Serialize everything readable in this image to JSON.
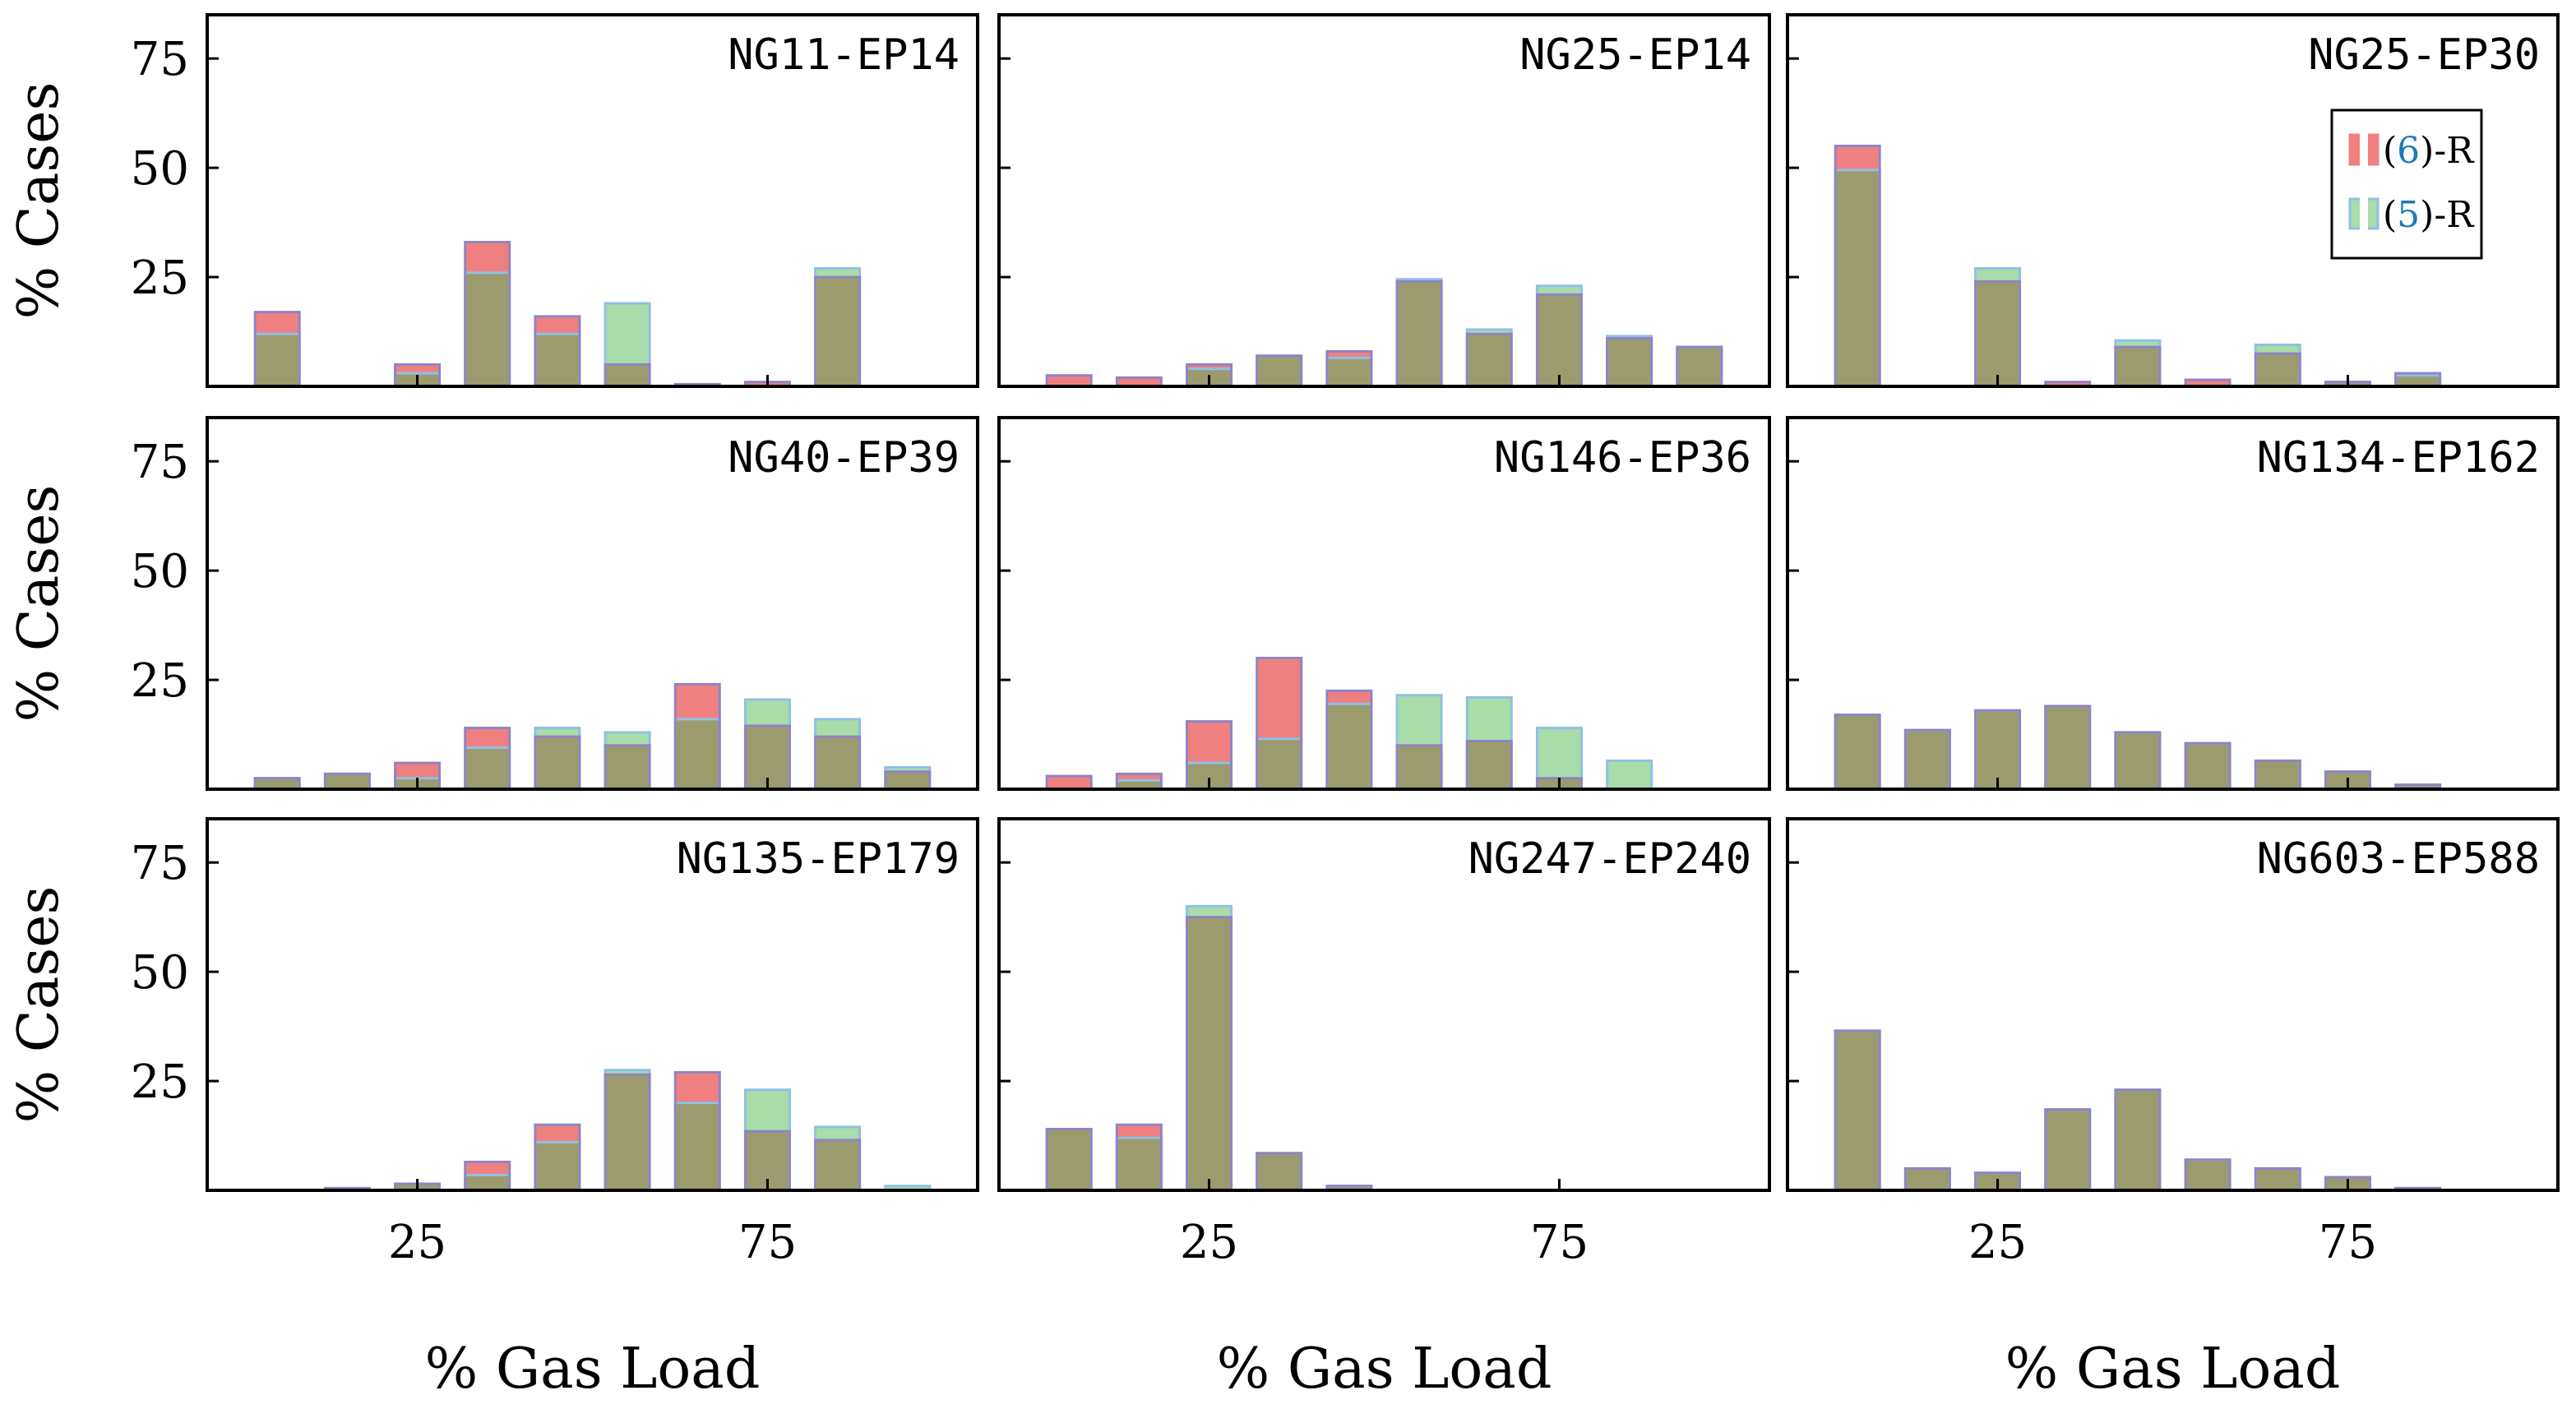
{
  "chart_data": {
    "type": "bar",
    "ylabel": "% Cases",
    "xlabel": "% Gas Load",
    "yticks": [
      "75",
      "50",
      "25"
    ],
    "xticks": [
      "25",
      "75"
    ],
    "ylim": [
      0,
      85
    ],
    "xlim": [
      -5,
      105
    ],
    "bin_centers": [
      5,
      15,
      25,
      35,
      45,
      55,
      65,
      75,
      85,
      95
    ],
    "colors": {
      "series6": "#f08080",
      "series5": "#a8dca8",
      "overlap": "#9b9b6e",
      "edge": "#8e84c6",
      "series5_edge": "#8fc0e6"
    },
    "legend": {
      "position": "top-right",
      "entries": [
        {
          "series": "series6",
          "open": "(",
          "num": "6",
          "close": ")-R"
        },
        {
          "series": "series5",
          "open": "(",
          "num": "5",
          "close": ")-R"
        }
      ]
    },
    "panels": [
      {
        "title": "NG11-EP14",
        "series6": [
          17,
          0,
          5,
          33,
          16,
          5,
          0.5,
          1,
          25,
          0
        ],
        "series5": [
          12,
          0,
          3,
          26,
          12,
          19,
          0,
          0,
          27,
          0
        ]
      },
      {
        "title": "NG25-EP14",
        "series6": [
          2.5,
          2,
          5,
          7,
          8,
          24,
          12,
          21,
          11,
          9
        ],
        "series5": [
          0,
          0,
          4,
          7,
          6.5,
          24.5,
          13,
          23,
          11.5,
          9
        ]
      },
      {
        "title": "NG25-EP30",
        "series6": [
          55,
          0,
          24,
          1,
          9,
          1.5,
          7.5,
          1,
          3,
          0
        ],
        "series5": [
          49.5,
          0,
          27,
          0,
          10.5,
          0,
          9.5,
          1,
          2.5,
          0
        ]
      },
      {
        "title": "NG40-EP39",
        "series6": [
          2.5,
          3.5,
          6,
          14,
          12,
          10,
          24,
          14.5,
          12,
          4
        ],
        "series5": [
          2.5,
          3.5,
          2.5,
          9.5,
          14,
          13,
          16,
          20.5,
          16,
          5
        ]
      },
      {
        "title": "NG146-EP36",
        "series6": [
          3,
          3.5,
          15.5,
          30,
          22.5,
          10,
          11,
          2.5,
          0,
          0
        ],
        "series5": [
          0,
          2,
          6,
          11.5,
          19.5,
          21.5,
          21,
          14,
          6.5,
          0
        ]
      },
      {
        "title": "NG134-EP162",
        "series6": [
          17,
          13.5,
          18,
          19,
          13,
          10.5,
          6.5,
          4,
          1,
          0
        ],
        "series5": [
          17,
          13.5,
          18,
          19,
          13,
          10.5,
          6.5,
          4,
          1,
          0
        ]
      },
      {
        "title": "NG135-EP179",
        "series6": [
          0,
          0.5,
          1.5,
          6.5,
          15,
          26.5,
          27,
          13.5,
          11.5,
          0
        ],
        "series5": [
          0,
          0,
          1.5,
          3.5,
          11,
          27.5,
          20,
          23,
          14.5,
          1
        ]
      },
      {
        "title": "NG247-EP240",
        "series6": [
          14,
          15,
          62.5,
          8.5,
          1,
          0,
          0,
          0,
          0,
          0
        ],
        "series5": [
          14,
          12,
          65,
          8.5,
          1,
          0,
          0,
          0,
          0,
          0
        ]
      },
      {
        "title": "NG603-EP588",
        "series6": [
          36.5,
          5,
          4,
          18.5,
          23,
          7,
          5,
          3,
          0.5,
          0
        ],
        "series5": [
          36.5,
          5,
          4,
          18.5,
          23,
          7,
          5,
          3,
          0.5,
          0
        ]
      }
    ]
  }
}
